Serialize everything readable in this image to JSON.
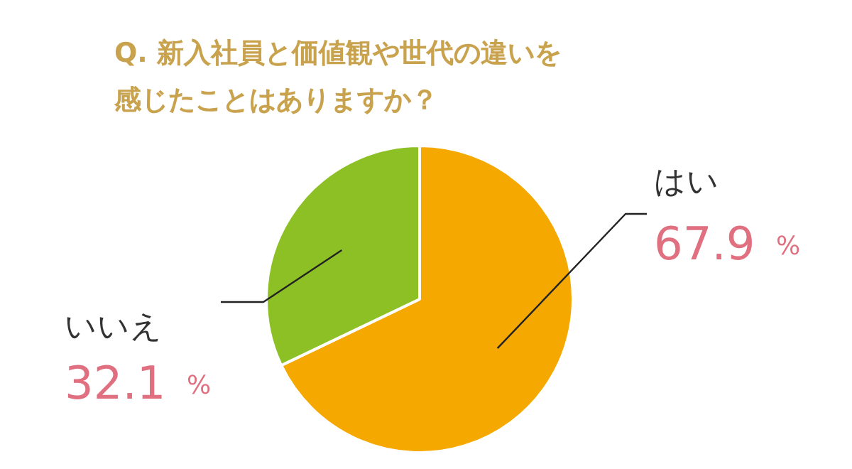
{
  "chart_data": {
    "type": "pie",
    "title": "Q. 新入社員と価値観や世代の違いを感じたことはありますか？",
    "categories": [
      "はい",
      "いいえ"
    ],
    "values": [
      67.9,
      32.1
    ],
    "colors": [
      "#f5a800",
      "#8cc024"
    ],
    "value_labels": [
      "67.9 %",
      "32.1 %"
    ]
  }
}
